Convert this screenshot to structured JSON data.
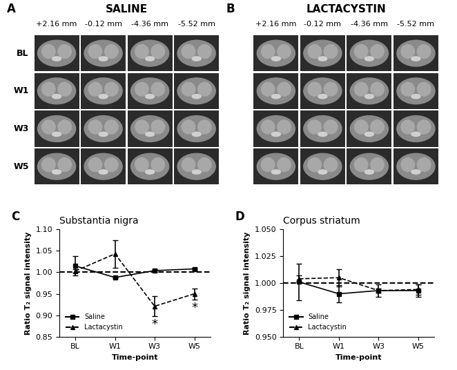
{
  "image_panels": [
    {
      "panel_label": "A",
      "title": "SALINE",
      "columns": [
        "+2.16 mm",
        "-0.12 mm",
        "-4.36 mm",
        "-5.52 mm"
      ],
      "rows": [
        "BL",
        "W1",
        "W3",
        "W5"
      ]
    },
    {
      "panel_label": "B",
      "title": "LACTACYSTIN",
      "columns": [
        "+2.16 mm",
        "-0.12 mm",
        "-4.36 mm",
        "-5.52 mm"
      ],
      "rows": [
        "BL",
        "W1",
        "W3",
        "W5"
      ]
    }
  ],
  "chart_data": [
    {
      "type": "line",
      "panel_label": "C",
      "title": "Substantia nigra",
      "x_label": "Time-point",
      "y_label": "Ratio T₂ signal intensity",
      "categories": [
        "BL",
        "W1",
        "W3",
        "W5"
      ],
      "ylim": [
        0.85,
        1.1
      ],
      "yticks": [
        0.85,
        {
          "value": 0.9,
          "label": "0.90"
        },
        0.95,
        {
          "value": 1.0,
          "label": "1.00"
        },
        1.05,
        {
          "value": 1.1,
          "label": "1.10"
        }
      ],
      "reference_line": 1.0,
      "legend": "lower left",
      "series": [
        {
          "name": "Saline",
          "color": "#000000",
          "marker": "square",
          "line_style": "solid",
          "values": [
            1.015,
            0.988,
            1.004,
            1.008
          ],
          "errors": [
            0.022,
            0.002,
            0.003,
            0.002
          ]
        },
        {
          "name": "Lactacystin",
          "color": "#000000",
          "marker": "triangle",
          "line_style": "dashed",
          "values": [
            1.003,
            1.043,
            0.921,
            0.95
          ],
          "errors": [
            0.004,
            0.032,
            0.023,
            0.013
          ]
        }
      ],
      "annotations": [
        {
          "text": "*",
          "category": "W3",
          "series": "Lactacystin"
        },
        {
          "text": "*",
          "category": "W5",
          "series": "Lactacystin"
        }
      ]
    },
    {
      "type": "line",
      "panel_label": "D",
      "title": "Corpus striatum",
      "x_label": "Time-point",
      "y_label": "Ratio T₂ signal intensity",
      "categories": [
        "BL",
        "W1",
        "W3",
        "W5"
      ],
      "ylim": [
        0.95,
        1.05
      ],
      "yticks": [
        {
          "value": 0.95,
          "label": "0.950"
        },
        0.975,
        {
          "value": 1.0,
          "label": "1.000"
        },
        1.025,
        {
          "value": 1.05,
          "label": "1.050"
        }
      ],
      "reference_line": 1.0,
      "legend": "lower left",
      "series": [
        {
          "name": "Saline",
          "color": "#000000",
          "marker": "square",
          "line_style": "solid",
          "values": [
            1.001,
            0.99,
            0.993,
            0.993
          ],
          "errors": [
            0.017,
            0.008,
            0.006,
            0.006
          ]
        },
        {
          "name": "Lactacystin",
          "color": "#000000",
          "marker": "triangle",
          "line_style": "dashed",
          "values": [
            1.004,
            1.005,
            0.993,
            0.994
          ],
          "errors": [
            0.003,
            0.008,
            0.002,
            0.005
          ]
        }
      ]
    }
  ]
}
